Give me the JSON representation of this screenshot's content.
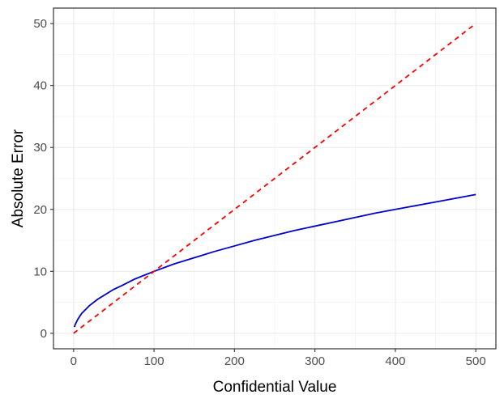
{
  "chart_data": {
    "type": "line",
    "title": "",
    "xlabel": "Confidential Value",
    "ylabel": "Absolute Error",
    "xlim": [
      -25,
      525
    ],
    "ylim": [
      -2.5,
      52.5
    ],
    "x_ticks": [
      0,
      100,
      200,
      300,
      400,
      500
    ],
    "y_ticks": [
      0,
      10,
      20,
      30,
      40,
      50
    ],
    "x_tick_labels": [
      "0",
      "100",
      "200",
      "300",
      "400",
      "500"
    ],
    "y_tick_labels": [
      "0",
      "10",
      "20",
      "30",
      "40",
      "50"
    ],
    "grid": true,
    "legend": "none",
    "series": [
      {
        "color": "#0000cc",
        "line_style": "solid",
        "x": [
          1,
          2,
          5,
          10,
          20,
          30,
          40,
          50,
          60,
          75,
          100,
          125,
          150,
          175,
          200,
          225,
          250,
          275,
          300,
          325,
          350,
          375,
          400,
          425,
          450,
          475,
          500
        ],
        "y": [
          1.0,
          1.4,
          2.2,
          3.2,
          4.5,
          5.5,
          6.3,
          7.1,
          7.7,
          8.7,
          10.0,
          11.2,
          12.2,
          13.2,
          14.1,
          15.0,
          15.8,
          16.6,
          17.3,
          18.0,
          18.7,
          19.4,
          20.0,
          20.6,
          21.2,
          21.8,
          22.4
        ]
      },
      {
        "color": "#ff0000",
        "line_style": "dashed",
        "x": [
          0,
          500
        ],
        "y": [
          0,
          50
        ]
      }
    ]
  }
}
